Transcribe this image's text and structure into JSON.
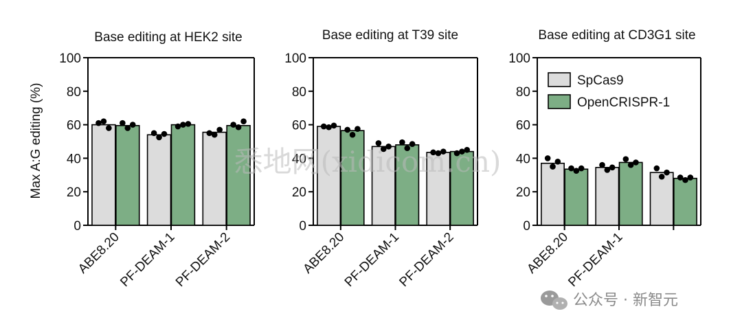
{
  "colors": {
    "spcas9": "#dcdcdc",
    "opencrispr": "#7dae85",
    "axis": "#000000",
    "dot": "#000000"
  },
  "y_axis_label": "Max A:G editing (%)",
  "legend": {
    "items": [
      "SpCas9",
      "OpenCRISPR-1"
    ]
  },
  "watermark": "悉地网(xidicom.cn)",
  "footer": {
    "icon": "wechat-icon",
    "text": "公众号 · 新智元"
  },
  "chart_data": [
    {
      "type": "bar",
      "title": "Base editing at HEK2 site",
      "ylabel": "Max A:G editing (%)",
      "ylim": [
        0,
        100
      ],
      "yticks": [
        0,
        20,
        40,
        60,
        80,
        100
      ],
      "categories": [
        "ABE8.20",
        "PF-DEAM-1",
        "PF-DEAM-2"
      ],
      "series": [
        {
          "name": "SpCas9",
          "values": [
            60,
            54,
            55.5
          ],
          "points": [
            [
              61,
              62,
              58
            ],
            [
              55,
              52.5,
              54.5
            ],
            [
              55,
              54,
              57
            ]
          ]
        },
        {
          "name": "OpenCRISPR-1",
          "values": [
            59.5,
            60,
            59.5
          ],
          "points": [
            [
              61,
              58,
              60
            ],
            [
              59,
              60,
              60.5
            ],
            [
              60,
              58.5,
              62
            ]
          ]
        }
      ]
    },
    {
      "type": "bar",
      "title": "Base editing at T39 site",
      "ylabel": "",
      "ylim": [
        0,
        100
      ],
      "yticks": [
        0,
        20,
        40,
        60,
        80,
        100
      ],
      "categories": [
        "ABE8.20",
        "PF-DEAM-1",
        "PF-DEAM-2"
      ],
      "series": [
        {
          "name": "SpCas9",
          "values": [
            59,
            47,
            43.5
          ],
          "points": [
            [
              59,
              58.5,
              59.5
            ],
            [
              49,
              45.5,
              47
            ],
            [
              43.5,
              43,
              44
            ]
          ]
        },
        {
          "name": "OpenCRISPR-1",
          "values": [
            56.5,
            48,
            44
          ],
          "points": [
            [
              57,
              54,
              57.5
            ],
            [
              49.5,
              46,
              48.5
            ],
            [
              43,
              44,
              45
            ]
          ]
        }
      ]
    },
    {
      "type": "bar",
      "title": "Base editing at CD3G1 site",
      "ylabel": "",
      "ylim": [
        0,
        100
      ],
      "yticks": [
        0,
        20,
        40,
        60,
        80,
        100
      ],
      "categories": [
        "ABE8.20",
        "PF-DEAM-1",
        ""
      ],
      "legend_position": "top-left",
      "series": [
        {
          "name": "SpCas9",
          "values": [
            37,
            34.5,
            31.5
          ],
          "points": [
            [
              40,
              35,
              38
            ],
            [
              36,
              33,
              34.5
            ],
            [
              34,
              29,
              31.5
            ]
          ]
        },
        {
          "name": "OpenCRISPR-1",
          "values": [
            33.5,
            37.5,
            28
          ],
          "points": [
            [
              34,
              32.5,
              34
            ],
            [
              39.5,
              36,
              37.5
            ],
            [
              28.5,
              27,
              28.5
            ]
          ]
        }
      ]
    }
  ]
}
